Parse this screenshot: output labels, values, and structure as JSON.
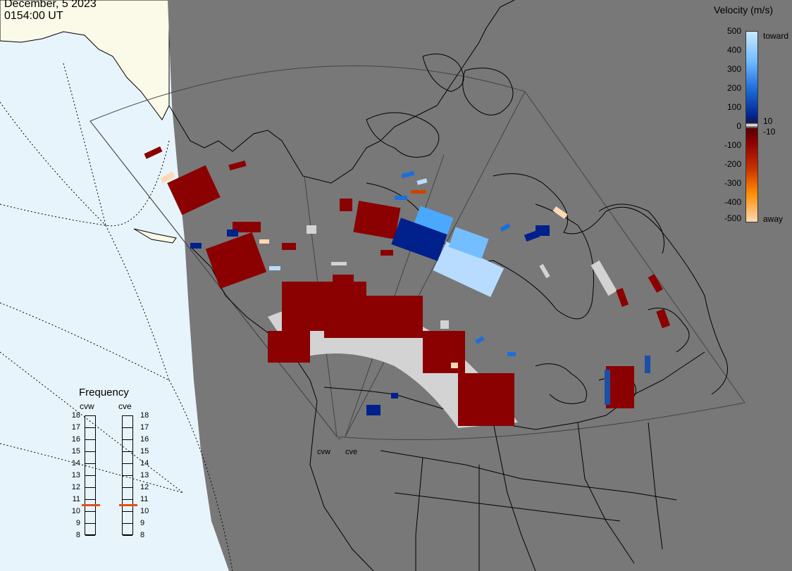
{
  "header": {
    "date": "December, 5 2023",
    "time": "0154:00 UT"
  },
  "colorbar": {
    "title": "Velocity (m/s)",
    "ticks": [
      "500",
      "400",
      "300",
      "200",
      "100",
      "10",
      "0",
      "-10",
      "-100",
      "-200",
      "-300",
      "-400",
      "-500"
    ],
    "toward_label": "toward",
    "away_label": "away",
    "range_ms": [
      -500,
      500
    ]
  },
  "frequency_panel": {
    "title": "Frequency",
    "radars": [
      {
        "code": "cvw",
        "frequency_mhz": 11
      },
      {
        "code": "cve",
        "frequency_mhz": 11
      }
    ],
    "scale": [
      "18",
      "17",
      "16",
      "15",
      "14",
      "13",
      "12",
      "11",
      "10",
      "9",
      "8"
    ]
  },
  "map": {
    "radar_site_labels": [
      "cvw",
      "cve"
    ],
    "colors": {
      "ocean": "#e8f4fb",
      "night_side": "#787878",
      "day_land": "#fbfae8",
      "ground_scatter": "#d3d3d3",
      "toward_max": "#c8e8ff",
      "away_max": "#ffd8b4"
    }
  }
}
